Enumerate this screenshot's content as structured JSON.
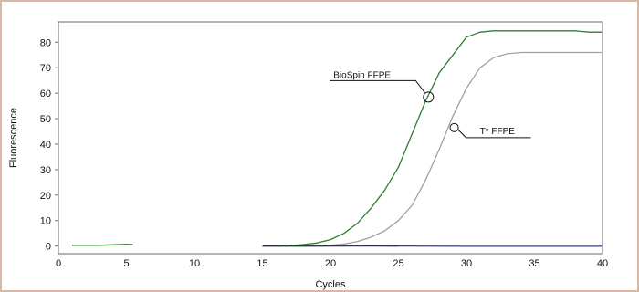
{
  "chart_data": {
    "type": "line",
    "xlabel": "Cycles",
    "ylabel": "Fluorescence",
    "xlim": [
      0,
      40
    ],
    "ylim": [
      -3,
      88
    ],
    "x_ticks": [
      0,
      5,
      10,
      15,
      20,
      25,
      30,
      35,
      40
    ],
    "y_ticks": [
      0,
      10,
      20,
      30,
      40,
      50,
      60,
      70,
      80
    ],
    "grid": true,
    "series": [
      {
        "name": "BioSpin FFPE",
        "color": "#2e7d32",
        "x": [
          15,
          16,
          17,
          18,
          19,
          20,
          21,
          22,
          23,
          24,
          25,
          26,
          27,
          28,
          29,
          30,
          31,
          32,
          33,
          34,
          35,
          36,
          37,
          38,
          39,
          40
        ],
        "y": [
          0,
          0,
          0.2,
          0.6,
          1.2,
          2.5,
          5,
          9,
          15,
          22,
          31,
          44,
          57,
          68,
          75,
          82,
          84,
          84.5,
          84.5,
          84.5,
          84.5,
          84.5,
          84.5,
          84.5,
          84,
          84
        ]
      },
      {
        "name": "T* FFPE",
        "color": "#a0a0a0",
        "x": [
          15,
          16,
          17,
          18,
          19,
          20,
          21,
          22,
          23,
          24,
          25,
          26,
          27,
          28,
          29,
          30,
          31,
          32,
          33,
          34,
          35,
          36,
          37,
          38,
          39,
          40
        ],
        "y": [
          0,
          0,
          0,
          0,
          0.1,
          0.3,
          0.8,
          1.8,
          3.5,
          6,
          10,
          16,
          26,
          38,
          51,
          62,
          70,
          74,
          75.5,
          76,
          76,
          76,
          76,
          76,
          76,
          76
        ]
      },
      {
        "color": "#2d3a9e",
        "x": [
          15,
          20,
          25,
          30,
          35,
          40
        ],
        "y": [
          0,
          0,
          0,
          -0.1,
          -0.1,
          -0.1
        ]
      },
      {
        "color": "#333333",
        "x": [
          15,
          17,
          19,
          21,
          23,
          25
        ],
        "y": [
          0,
          0,
          0,
          0.1,
          0.1,
          0
        ]
      },
      {
        "color": "#2e7d32",
        "x": [
          1,
          3,
          5,
          5.5
        ],
        "y": [
          0.3,
          0.3,
          0.7,
          0.5
        ]
      }
    ],
    "annotations": [
      {
        "text": "BioSpin FFPE",
        "x": 27.2,
        "y": 58.5
      },
      {
        "text": "T* FFPE",
        "x": 29.1,
        "y": 46.5
      }
    ]
  }
}
